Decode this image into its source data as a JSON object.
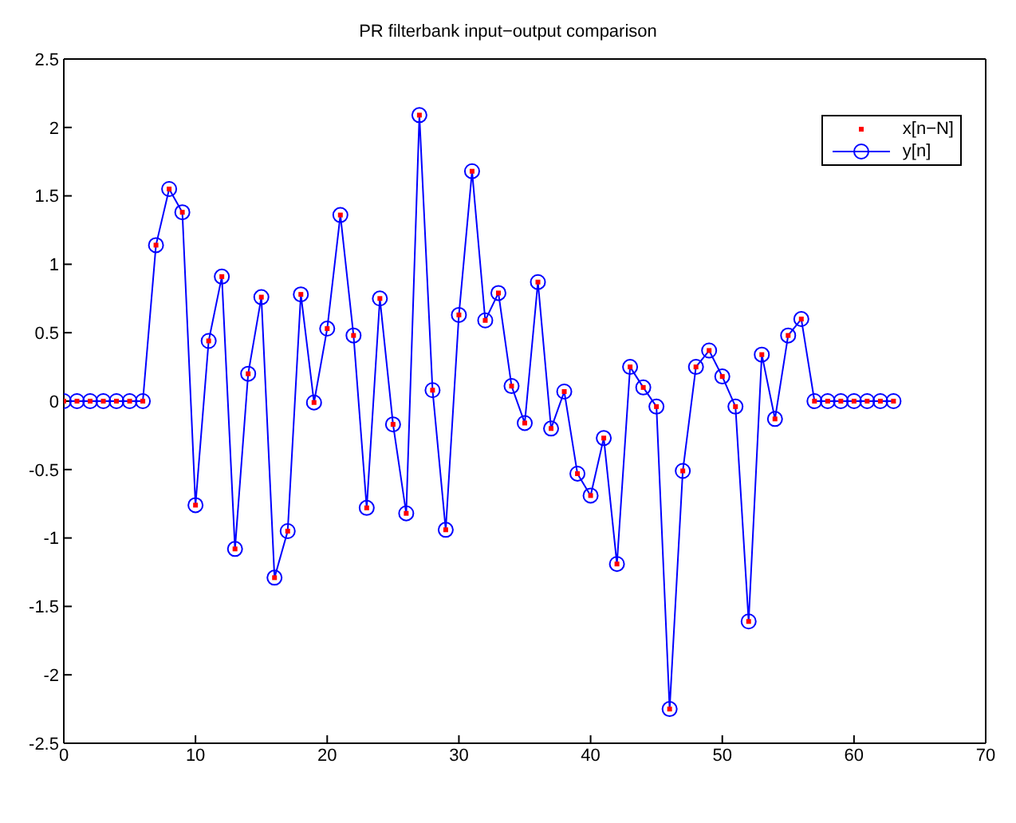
{
  "chart_data": {
    "type": "line",
    "title": "PR filterbank input−output comparison",
    "x": [
      0,
      1,
      2,
      3,
      4,
      5,
      6,
      7,
      8,
      9,
      10,
      11,
      12,
      13,
      14,
      15,
      16,
      17,
      18,
      19,
      20,
      21,
      22,
      23,
      24,
      25,
      26,
      27,
      28,
      29,
      30,
      31,
      32,
      33,
      34,
      35,
      36,
      37,
      38,
      39,
      40,
      41,
      42,
      43,
      44,
      45,
      46,
      47,
      48,
      49,
      50,
      51,
      52,
      53,
      54,
      55,
      56,
      57,
      58,
      59,
      60,
      61,
      62,
      63
    ],
    "series": [
      {
        "name": "x[n−N]",
        "type": "scatter",
        "marker": "square",
        "color": "#ff0000",
        "values": [
          0,
          0,
          0,
          0,
          0,
          0,
          0,
          1.14,
          1.55,
          1.38,
          -0.76,
          0.44,
          0.91,
          -1.08,
          0.2,
          0.76,
          -1.29,
          -0.95,
          0.78,
          -0.01,
          0.53,
          1.36,
          0.48,
          -0.78,
          0.75,
          -0.17,
          -0.82,
          2.09,
          0.08,
          -0.94,
          0.63,
          1.68,
          0.59,
          0.79,
          0.11,
          -0.16,
          0.87,
          -0.2,
          0.07,
          -0.53,
          -0.69,
          -0.27,
          -1.19,
          0.25,
          0.1,
          -0.04,
          -2.25,
          -0.51,
          0.25,
          0.37,
          0.18,
          -0.04,
          -1.61,
          0.34,
          -0.13,
          0.48,
          0.6,
          0,
          0,
          0,
          0,
          0,
          0,
          0
        ]
      },
      {
        "name": "y[n]",
        "marker": "circle",
        "line_style": "solid",
        "color": "#0000ff",
        "values": [
          0,
          0,
          0,
          0,
          0,
          0,
          0,
          1.14,
          1.55,
          1.38,
          -0.76,
          0.44,
          0.91,
          -1.08,
          0.2,
          0.76,
          -1.29,
          -0.95,
          0.78,
          -0.01,
          0.53,
          1.36,
          0.48,
          -0.78,
          0.75,
          -0.17,
          -0.82,
          2.09,
          0.08,
          -0.94,
          0.63,
          1.68,
          0.59,
          0.79,
          0.11,
          -0.16,
          0.87,
          -0.2,
          0.07,
          -0.53,
          -0.69,
          -0.27,
          -1.19,
          0.25,
          0.1,
          -0.04,
          -2.25,
          -0.51,
          0.25,
          0.37,
          0.18,
          -0.04,
          -1.61,
          0.34,
          -0.13,
          0.48,
          0.6,
          0,
          0,
          0,
          0,
          0,
          0,
          0
        ]
      }
    ],
    "xlim": [
      0,
      70
    ],
    "xticks": [
      0,
      10,
      20,
      30,
      40,
      50,
      60,
      70
    ],
    "ylim": [
      -2.5,
      2.5
    ],
    "yticks": [
      -2.5,
      -2,
      -1.5,
      -1,
      -0.5,
      0,
      0.5,
      1,
      1.5,
      2,
      2.5
    ],
    "grid": false,
    "legend": "top right"
  }
}
